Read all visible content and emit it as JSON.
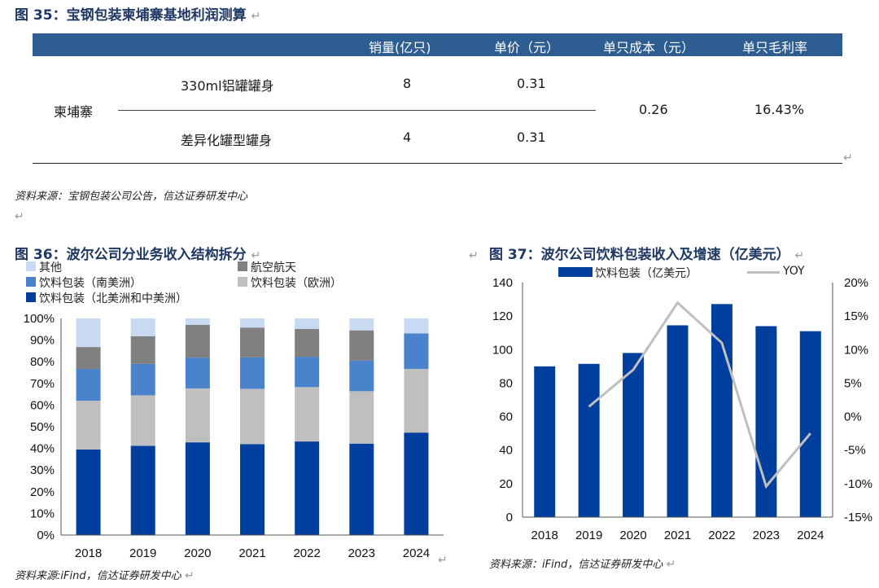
{
  "table": {
    "title_prefix": "图",
    "title_num": "35",
    "title_text": "宝钢包装柬埔寨基地利润测算",
    "headers": [
      "销量(亿只)",
      "单价（元）",
      "单只成本（元）",
      "单只毛利率"
    ],
    "region": "柬埔寨",
    "rows": [
      {
        "product": "330ml铝罐罐身",
        "volume": "8",
        "price": "0.31"
      },
      {
        "product": "差异化罐型罐身",
        "volume": "4",
        "price": "0.31"
      }
    ],
    "unit_cost": "0.26",
    "gross_margin": "16.43%",
    "source": "资料来源：宝钢包装公司公告，信达证券研发中心"
  },
  "return_mark": "↵",
  "chart_data": [
    {
      "type": "bar",
      "stacked": true,
      "title_prefix": "图",
      "title_num": "36",
      "title_text": "波尔公司分业务收入结构拆分",
      "categories": [
        "2018",
        "2019",
        "2020",
        "2021",
        "2022",
        "2023",
        "2024"
      ],
      "series": [
        {
          "name": "饮料包装（北美洲和中美洲）",
          "color": "#003f9e",
          "values": [
            39.5,
            41.2,
            42.8,
            42.0,
            43.2,
            42.2,
            47.3
          ]
        },
        {
          "name": "饮料包装（欧洲）",
          "color": "#bfbfbf",
          "values": [
            22.5,
            23.3,
            24.9,
            25.5,
            25.1,
            24.2,
            29.4
          ]
        },
        {
          "name": "饮料包装（南美洲）",
          "color": "#4a82cc",
          "values": [
            14.7,
            14.5,
            14.2,
            14.5,
            14.0,
            14.1,
            16.4
          ]
        },
        {
          "name": "航空航天",
          "color": "#808080",
          "values": [
            10.1,
            12.8,
            15.1,
            13.8,
            12.9,
            14.0,
            0
          ]
        },
        {
          "name": "其他",
          "color": "#c7daf2",
          "values": [
            13.2,
            8.2,
            3.0,
            4.2,
            4.8,
            5.5,
            6.9
          ]
        }
      ],
      "ylim": [
        0,
        100
      ],
      "yticks": [
        "0%",
        "10%",
        "20%",
        "30%",
        "40%",
        "50%",
        "60%",
        "70%",
        "80%",
        "90%",
        "100%"
      ],
      "legend_order": [
        "其他",
        "航空航天",
        "饮料包装（南美洲）",
        "饮料包装（欧洲）",
        "饮料包装（北美洲和中美洲）"
      ],
      "source": "资料来源:iFind，信达证券研发中心"
    },
    {
      "type": "bar+line",
      "title_prefix": "图",
      "title_num": "37",
      "title_text": "波尔公司饮料包装收入及增速（亿美元）",
      "categories": [
        "2018",
        "2019",
        "2020",
        "2021",
        "2022",
        "2023",
        "2024"
      ],
      "bar_series": {
        "name": "饮料包装（亿美元）",
        "color": "#003f9e",
        "values": [
          90,
          91.5,
          98,
          114.5,
          127.2,
          114,
          111
        ]
      },
      "line_series": {
        "name": "YOY",
        "color": "#bfbfbf",
        "values": [
          null,
          1.5,
          7.0,
          17.0,
          11.0,
          -10.4,
          -2.5
        ]
      },
      "y_left": {
        "lim": [
          0,
          140
        ],
        "ticks": [
          "0",
          "20",
          "40",
          "60",
          "80",
          "100",
          "120",
          "140"
        ]
      },
      "y_right": {
        "lim": [
          -15,
          20
        ],
        "ticks": [
          "-15%",
          "-10%",
          "-5%",
          "0%",
          "5%",
          "10%",
          "15%",
          "20%"
        ]
      },
      "source": "资料来源：iFind，信达证券研发中心"
    }
  ]
}
